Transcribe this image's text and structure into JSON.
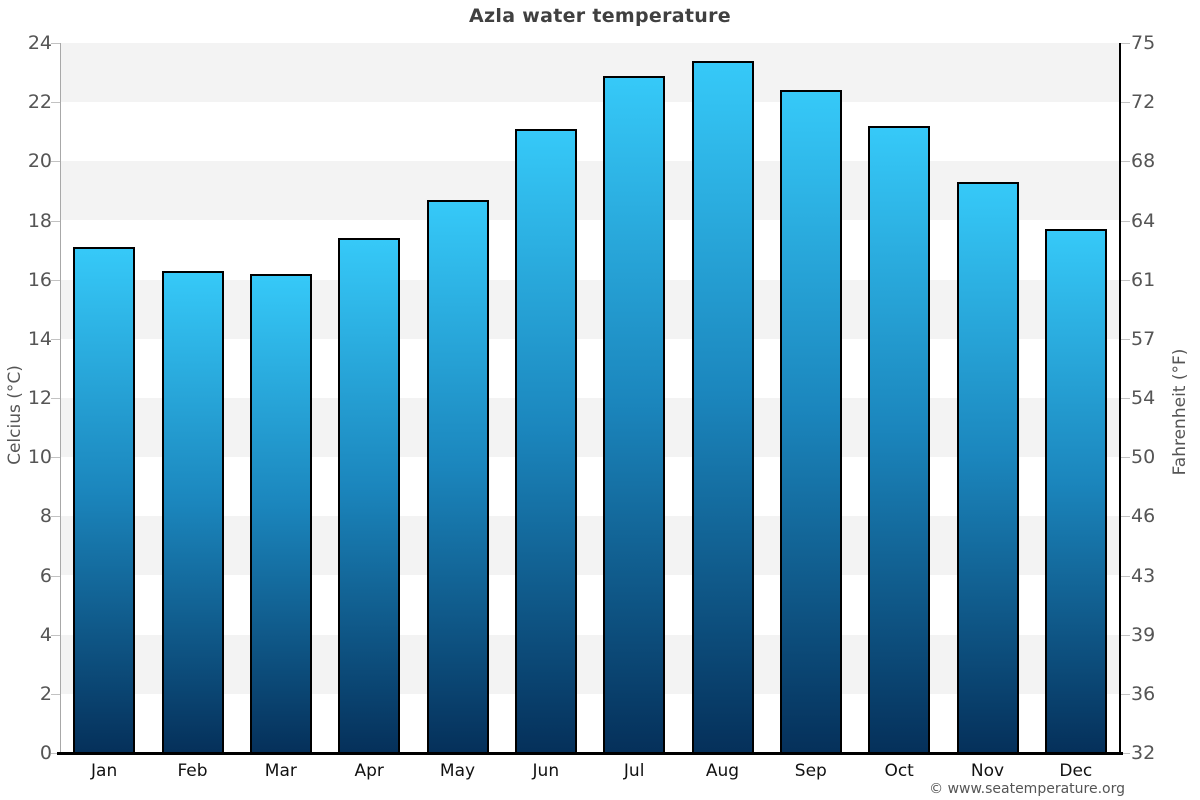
{
  "chart_data": {
    "type": "bar",
    "title": "Azla water temperature",
    "categories": [
      "Jan",
      "Feb",
      "Mar",
      "Apr",
      "May",
      "Jun",
      "Jul",
      "Aug",
      "Sep",
      "Oct",
      "Nov",
      "Dec"
    ],
    "values": [
      17.1,
      16.3,
      16.2,
      17.4,
      18.7,
      21.1,
      22.9,
      23.4,
      22.4,
      21.2,
      19.3,
      17.7
    ],
    "unit": "°C",
    "ylabel_left": "Celcius (°C)",
    "ylabel_right": "Fahrenheit (°F)",
    "ylim": [
      0,
      24
    ],
    "yticks_celsius": [
      0,
      2,
      4,
      6,
      8,
      10,
      12,
      14,
      16,
      18,
      20,
      22,
      24
    ],
    "yticks_fahrenheit_labels": [
      "32",
      "36",
      "39",
      "43",
      "46",
      "50",
      "54",
      "57",
      "61",
      "64",
      "68",
      "72",
      "75"
    ],
    "grid": "alternating-horizontal-bands",
    "legend": "none",
    "footer": "© www.seatemperature.org",
    "colors": {
      "bar_gradient_top": "#36c9f8",
      "bar_gradient_mid": "#1b86bd",
      "bar_gradient_bottom": "#05305a",
      "bar_border": "#000000",
      "band_gray": "#f3f3f3",
      "band_white": "#ffffff",
      "title_text": "#404040",
      "tick_text": "#555555",
      "month_text": "#111111",
      "baseline": "#000000"
    }
  }
}
